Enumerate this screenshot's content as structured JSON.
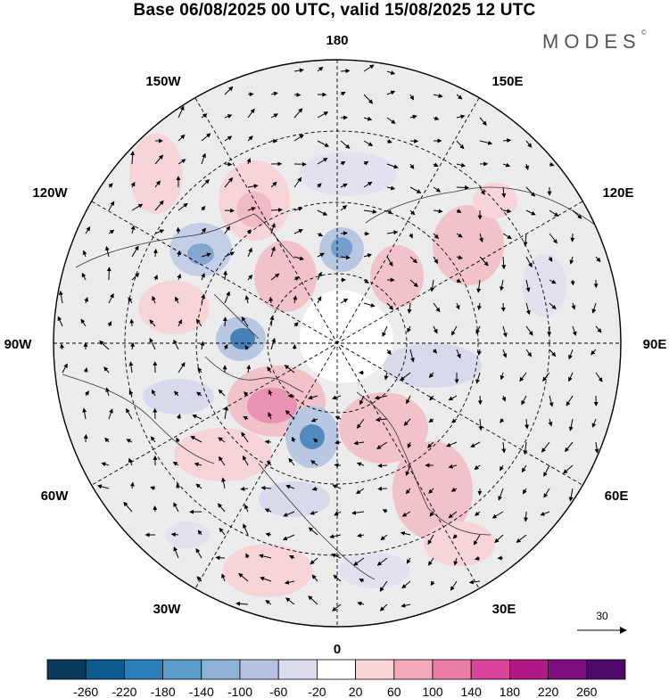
{
  "title": "Base 06/08/2025 00 UTC, valid 15/08/2025 12 UTC",
  "brand": {
    "name": "MODES",
    "mark": "©"
  },
  "longitude_labels": {
    "top": "180",
    "bottom": "0",
    "left": "90W",
    "right": "90E",
    "upper_left_1": "150W",
    "upper_left_2": "120W",
    "upper_right_1": "150E",
    "upper_right_2": "120E",
    "lower_left_1": "60W",
    "lower_left_2": "30W",
    "lower_right_1": "60E",
    "lower_right_2": "30E"
  },
  "reference_vector": {
    "label": "30"
  },
  "colorbar": {
    "ticks": [
      "-260",
      "-220",
      "-180",
      "-140",
      "-100",
      "-60",
      "-20",
      "20",
      "60",
      "100",
      "140",
      "180",
      "220",
      "260"
    ],
    "colors": [
      "#0b3a5c",
      "#0d5a8f",
      "#2a7fb8",
      "#5a9dc9",
      "#8fb3d8",
      "#b6c3e0",
      "#dcdcef",
      "#ffffff",
      "#f8d6d6",
      "#f3aab9",
      "#ea7ea8",
      "#d9449a",
      "#b21786",
      "#7d0c80",
      "#4d0a6b"
    ]
  }
}
